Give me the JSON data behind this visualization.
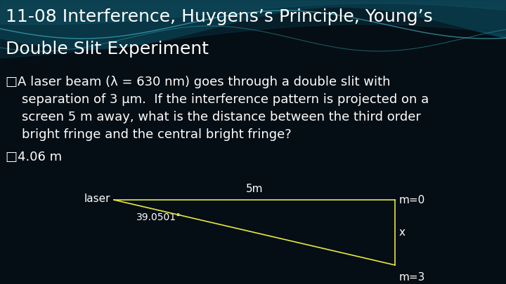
{
  "title_line1": "11-08 Interference, Huygens’s Principle, Young’s",
  "title_line2": "Double Slit Experiment",
  "bullet1": "□A laser beam (λ = 630 nm) goes through a double slit with",
  "bullet1_cont1": "    separation of 3 μm.  If the interference pattern is projected on a",
  "bullet1_cont2": "    screen 5 m away, what is the distance between the third order",
  "bullet1_cont3": "    bright fringe and the central bright fringe?",
  "bullet2": "□4.06 m",
  "label_laser": "laser",
  "label_5m": "5m",
  "label_angle": "39.0501°",
  "label_m0": "m=0",
  "label_x": "x",
  "label_m3": "m=3",
  "bg_color": "#050e14",
  "text_color": "#ffffff",
  "triangle_color": "#e8e840",
  "title_fontsize": 18,
  "body_fontsize": 13,
  "answer_fontsize": 13,
  "diagram_text_fontsize": 11,
  "wave_color1": "#0d5060",
  "wave_color2": "#1a7080",
  "wave_color3": "#0a4050"
}
